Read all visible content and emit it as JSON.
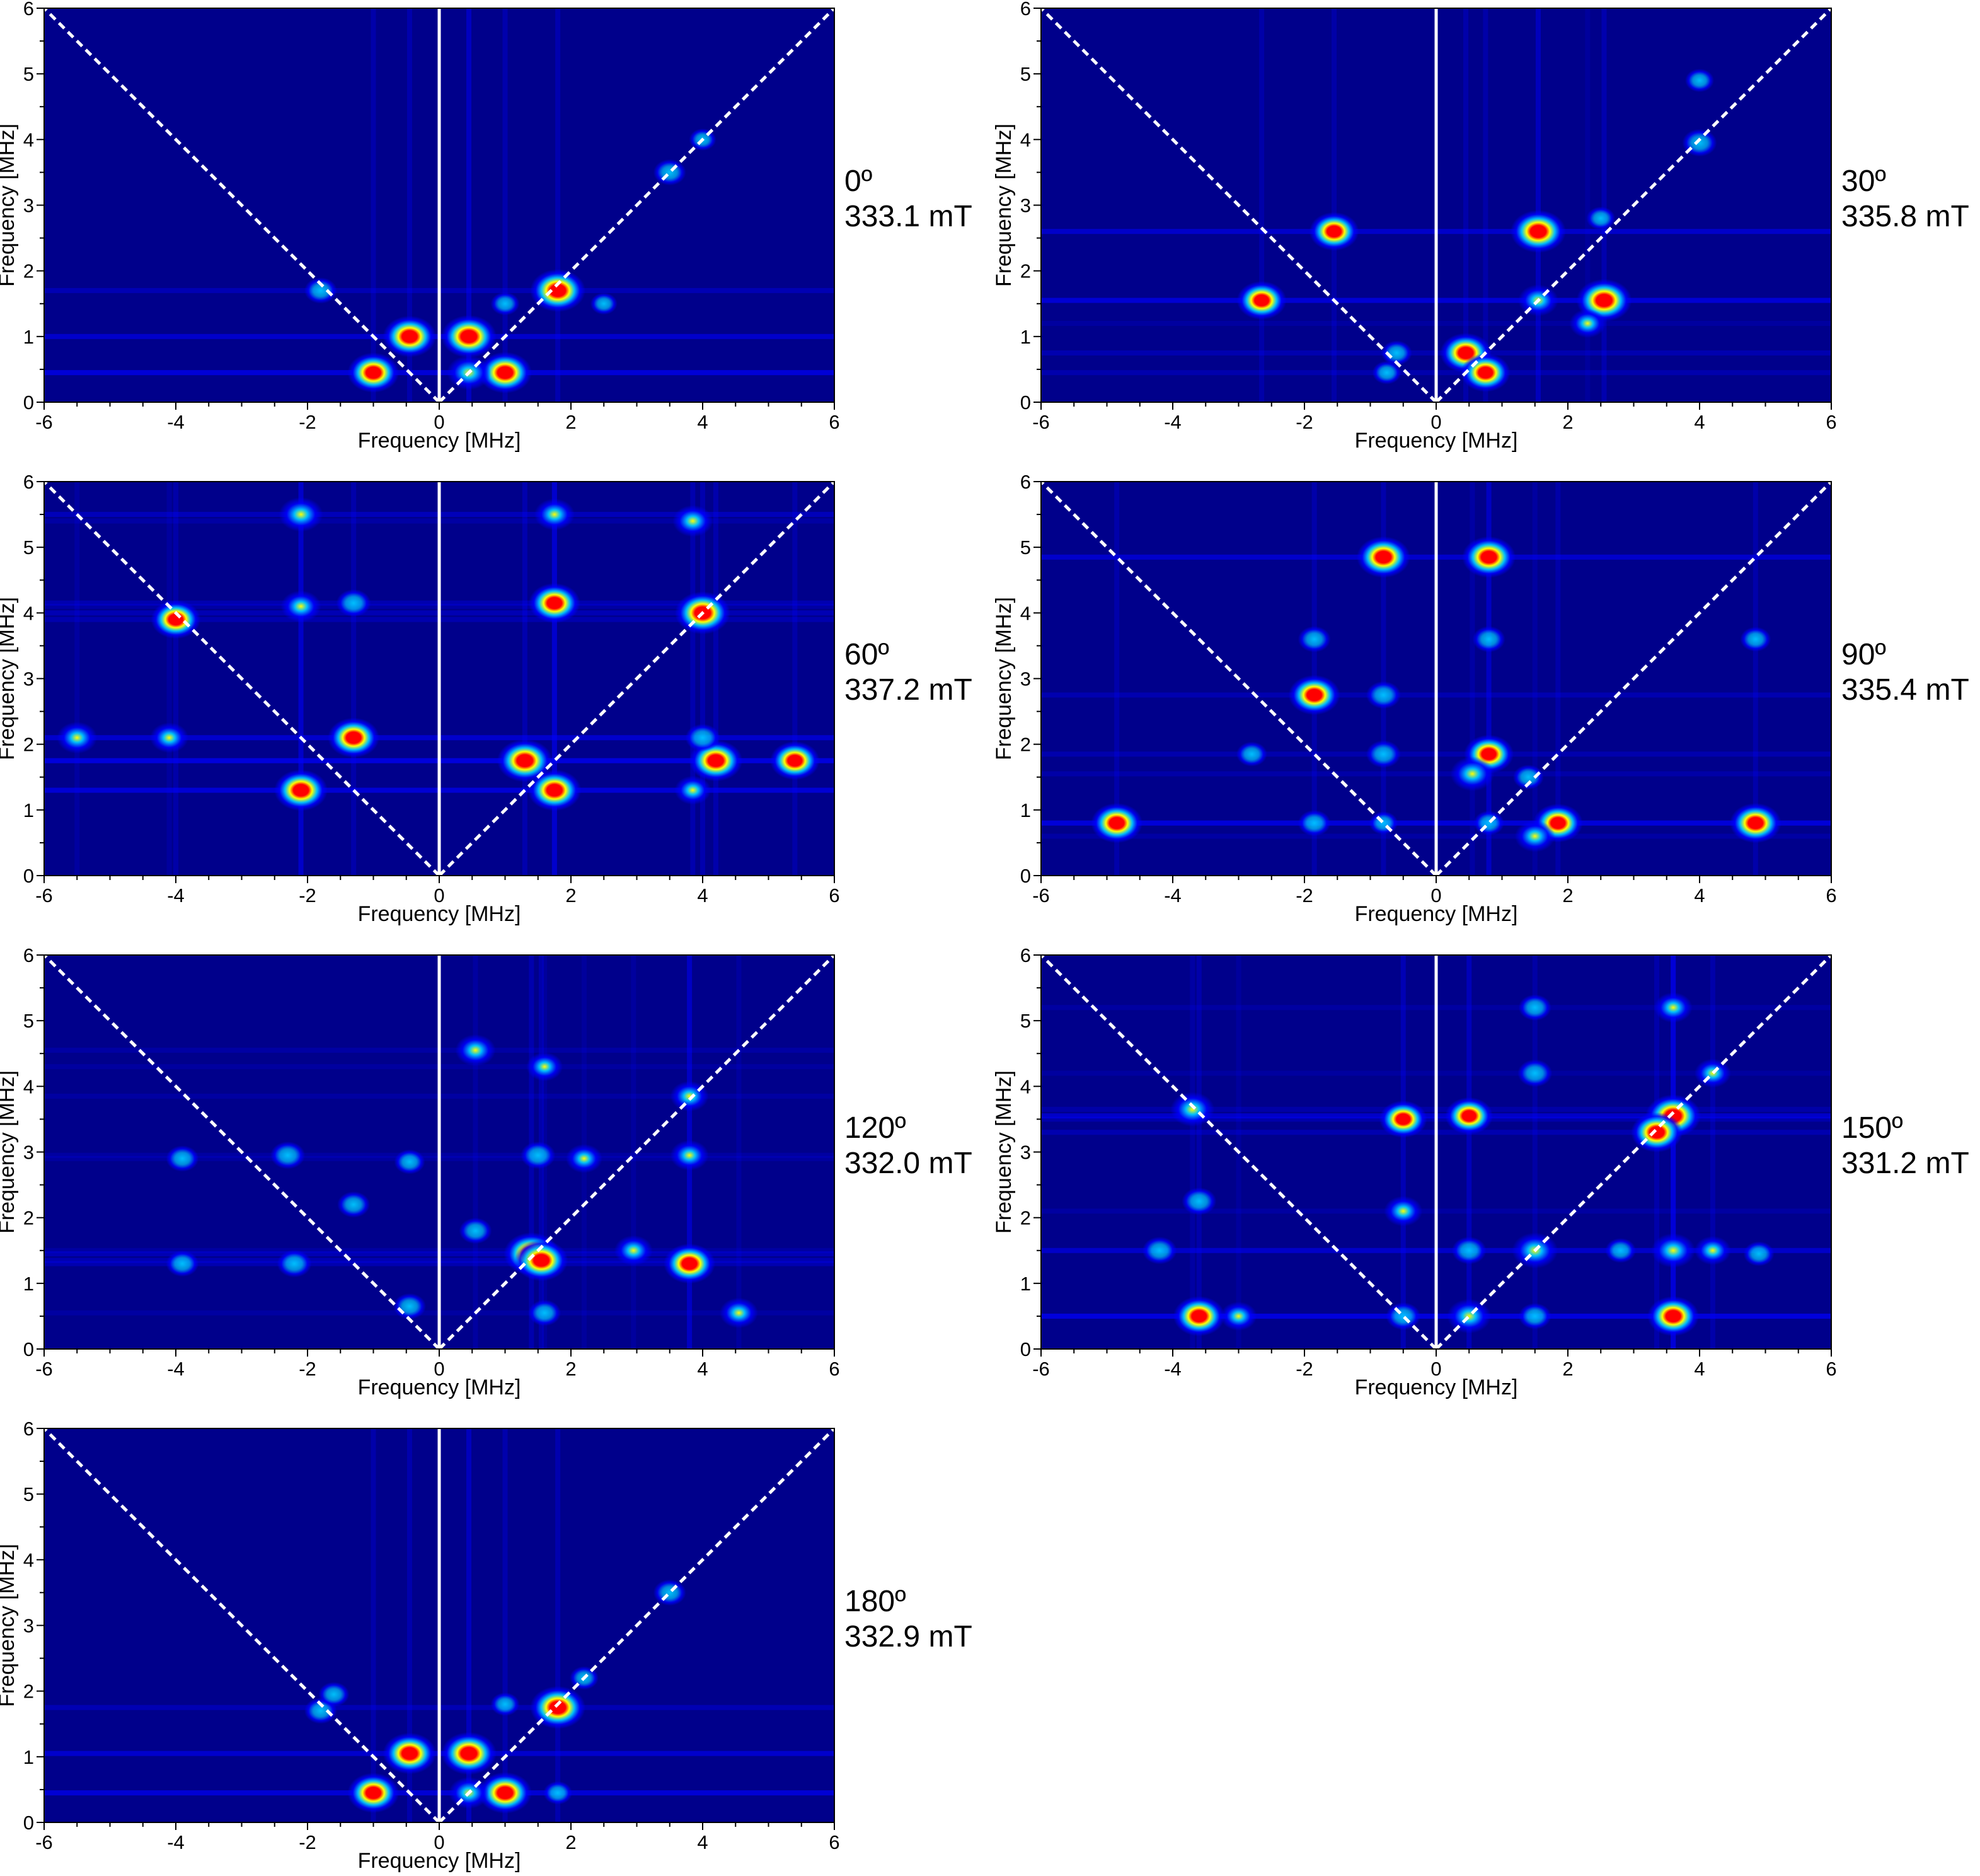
{
  "figure": {
    "panel_count": 7
  },
  "chart_data": [
    {
      "type": "heatmap",
      "panel_label": [
        "0º",
        "333.1 mT"
      ],
      "angle": "0º",
      "field": "333.1 mT",
      "xlabel": "Frequency [MHz]",
      "ylabel": "Frequency [MHz]",
      "xlim": [
        -6,
        6
      ],
      "ylim": [
        0,
        6
      ],
      "xticks": [
        -6,
        -4,
        -2,
        0,
        2,
        4,
        6
      ],
      "yticks": [
        0,
        1,
        2,
        3,
        4,
        5,
        6
      ],
      "reference_lines": [
        "x=0",
        "y=x",
        "y=-x"
      ],
      "colormap": [
        "#00008b",
        "#0000ff",
        "#00c8ff",
        "#ffff00",
        "#ff0000"
      ],
      "peaks": [
        {
          "x": 1.8,
          "y": 1.7,
          "intensity": 1.0
        },
        {
          "x": 0.45,
          "y": 1.0,
          "intensity": 1.0
        },
        {
          "x": -0.45,
          "y": 1.0,
          "intensity": 0.95
        },
        {
          "x": 1.0,
          "y": 0.45,
          "intensity": 0.95
        },
        {
          "x": -1.0,
          "y": 0.45,
          "intensity": 0.9
        },
        {
          "x": 0.45,
          "y": 0.45,
          "intensity": 0.7
        },
        {
          "x": -1.8,
          "y": 1.7,
          "intensity": 0.4
        },
        {
          "x": 3.5,
          "y": 3.5,
          "intensity": 0.4
        },
        {
          "x": 1.0,
          "y": 1.5,
          "intensity": 0.3
        },
        {
          "x": 2.5,
          "y": 1.5,
          "intensity": 0.25
        },
        {
          "x": 4.0,
          "y": 4.0,
          "intensity": 0.25
        }
      ]
    },
    {
      "type": "heatmap",
      "panel_label": [
        "30º",
        "335.8 mT"
      ],
      "angle": "30º",
      "field": "335.8 mT",
      "xlabel": "Frequency [MHz]",
      "ylabel": "Frequency [MHz]",
      "xlim": [
        -6,
        6
      ],
      "ylim": [
        0,
        6
      ],
      "xticks": [
        -6,
        -4,
        -2,
        0,
        2,
        4,
        6
      ],
      "yticks": [
        0,
        1,
        2,
        3,
        4,
        5,
        6
      ],
      "reference_lines": [
        "x=0",
        "y=x",
        "y=-x"
      ],
      "colormap": [
        "#00008b",
        "#0000ff",
        "#00c8ff",
        "#ffff00",
        "#ff0000"
      ],
      "peaks": [
        {
          "x": 1.55,
          "y": 2.6,
          "intensity": 1.0
        },
        {
          "x": 2.55,
          "y": 1.55,
          "intensity": 1.0
        },
        {
          "x": -2.65,
          "y": 1.55,
          "intensity": 0.85
        },
        {
          "x": -1.55,
          "y": 2.6,
          "intensity": 0.85
        },
        {
          "x": 0.45,
          "y": 0.75,
          "intensity": 0.9
        },
        {
          "x": 0.75,
          "y": 0.45,
          "intensity": 0.85
        },
        {
          "x": 1.55,
          "y": 1.55,
          "intensity": 0.6
        },
        {
          "x": 2.3,
          "y": 1.2,
          "intensity": 0.5
        },
        {
          "x": 4.0,
          "y": 3.95,
          "intensity": 0.45
        },
        {
          "x": 4.0,
          "y": 4.9,
          "intensity": 0.3
        },
        {
          "x": -0.6,
          "y": 0.75,
          "intensity": 0.35
        },
        {
          "x": -0.75,
          "y": 0.45,
          "intensity": 0.3
        },
        {
          "x": 2.5,
          "y": 2.8,
          "intensity": 0.3
        }
      ]
    },
    {
      "type": "heatmap",
      "panel_label": [
        "60º",
        "337.2 mT"
      ],
      "angle": "60º",
      "field": "337.2 mT",
      "xlabel": "Frequency [MHz]",
      "ylabel": "Frequency [MHz]",
      "xlim": [
        -6,
        6
      ],
      "ylim": [
        0,
        6
      ],
      "xticks": [
        -6,
        -4,
        -2,
        0,
        2,
        4,
        6
      ],
      "yticks": [
        0,
        1,
        2,
        3,
        4,
        5,
        6
      ],
      "reference_lines": [
        "x=0",
        "y=x",
        "y=-x"
      ],
      "colormap": [
        "#00008b",
        "#0000ff",
        "#00c8ff",
        "#ffff00",
        "#ff0000"
      ],
      "peaks": [
        {
          "x": 4.0,
          "y": 4.0,
          "intensity": 1.0
        },
        {
          "x": 1.3,
          "y": 1.75,
          "intensity": 1.0
        },
        {
          "x": 1.75,
          "y": 1.3,
          "intensity": 0.95
        },
        {
          "x": -2.1,
          "y": 1.3,
          "intensity": 0.95
        },
        {
          "x": 4.2,
          "y": 1.75,
          "intensity": 0.95
        },
        {
          "x": 5.4,
          "y": 1.75,
          "intensity": 0.85
        },
        {
          "x": -1.3,
          "y": 2.1,
          "intensity": 0.9
        },
        {
          "x": 1.75,
          "y": 4.15,
          "intensity": 0.9
        },
        {
          "x": -4.0,
          "y": 3.9,
          "intensity": 0.85
        },
        {
          "x": -2.1,
          "y": 5.5,
          "intensity": 0.7
        },
        {
          "x": 1.75,
          "y": 5.5,
          "intensity": 0.6
        },
        {
          "x": 3.85,
          "y": 5.4,
          "intensity": 0.6
        },
        {
          "x": -5.5,
          "y": 2.1,
          "intensity": 0.6
        },
        {
          "x": -2.1,
          "y": 4.1,
          "intensity": 0.6
        },
        {
          "x": -4.1,
          "y": 2.1,
          "intensity": 0.55
        },
        {
          "x": 3.85,
          "y": 1.3,
          "intensity": 0.5
        },
        {
          "x": 4.0,
          "y": 2.1,
          "intensity": 0.45
        },
        {
          "x": -1.3,
          "y": 4.15,
          "intensity": 0.45
        }
      ]
    },
    {
      "type": "heatmap",
      "panel_label": [
        "90º",
        "335.4 mT"
      ],
      "angle": "90º",
      "field": "335.4 mT",
      "xlabel": "Frequency [MHz]",
      "ylabel": "Frequency [MHz]",
      "xlim": [
        -6,
        6
      ],
      "ylim": [
        0,
        6
      ],
      "xticks": [
        -6,
        -4,
        -2,
        0,
        2,
        4,
        6
      ],
      "yticks": [
        0,
        1,
        2,
        3,
        4,
        5,
        6
      ],
      "reference_lines": [
        "x=0",
        "y=x",
        "y=-x"
      ],
      "colormap": [
        "#00008b",
        "#0000ff",
        "#00c8ff",
        "#ffff00",
        "#ff0000"
      ],
      "peaks": [
        {
          "x": -0.8,
          "y": 4.85,
          "intensity": 0.95
        },
        {
          "x": 0.8,
          "y": 4.85,
          "intensity": 0.95
        },
        {
          "x": -1.85,
          "y": 2.75,
          "intensity": 0.9
        },
        {
          "x": -4.85,
          "y": 0.8,
          "intensity": 0.9
        },
        {
          "x": 4.85,
          "y": 0.8,
          "intensity": 0.9
        },
        {
          "x": 0.8,
          "y": 1.85,
          "intensity": 0.85
        },
        {
          "x": 1.85,
          "y": 0.8,
          "intensity": 0.85
        },
        {
          "x": 0.55,
          "y": 1.55,
          "intensity": 0.7
        },
        {
          "x": 1.5,
          "y": 0.6,
          "intensity": 0.6
        },
        {
          "x": -0.8,
          "y": 2.75,
          "intensity": 0.45
        },
        {
          "x": -0.8,
          "y": 1.85,
          "intensity": 0.45
        },
        {
          "x": -1.85,
          "y": 3.6,
          "intensity": 0.4
        },
        {
          "x": 0.8,
          "y": 3.6,
          "intensity": 0.4
        },
        {
          "x": -1.85,
          "y": 0.8,
          "intensity": 0.4
        },
        {
          "x": 4.85,
          "y": 3.6,
          "intensity": 0.35
        },
        {
          "x": -2.8,
          "y": 1.85,
          "intensity": 0.35
        },
        {
          "x": 1.4,
          "y": 1.5,
          "intensity": 0.35
        },
        {
          "x": 0.8,
          "y": 0.8,
          "intensity": 0.35
        },
        {
          "x": -0.8,
          "y": 0.8,
          "intensity": 0.3
        }
      ]
    },
    {
      "type": "heatmap",
      "panel_label": [
        "120º",
        "332.0 mT"
      ],
      "angle": "120º",
      "field": "332.0 mT",
      "xlabel": "Frequency [MHz]",
      "ylabel": "Frequency [MHz]",
      "xlim": [
        -6,
        6
      ],
      "ylim": [
        0,
        6
      ],
      "xticks": [
        -6,
        -4,
        -2,
        0,
        2,
        4,
        6
      ],
      "yticks": [
        0,
        1,
        2,
        3,
        4,
        5,
        6
      ],
      "reference_lines": [
        "x=0",
        "y=x",
        "y=-x"
      ],
      "colormap": [
        "#00008b",
        "#0000ff",
        "#00c8ff",
        "#ffff00",
        "#ff0000"
      ],
      "peaks": [
        {
          "x": 1.4,
          "y": 1.45,
          "intensity": 1.0
        },
        {
          "x": 1.55,
          "y": 1.35,
          "intensity": 0.95
        },
        {
          "x": 3.8,
          "y": 1.3,
          "intensity": 0.9
        },
        {
          "x": 0.55,
          "y": 4.55,
          "intensity": 0.6
        },
        {
          "x": 1.6,
          "y": 4.3,
          "intensity": 0.5
        },
        {
          "x": 3.8,
          "y": 3.85,
          "intensity": 0.55
        },
        {
          "x": 3.8,
          "y": 2.95,
          "intensity": 0.55
        },
        {
          "x": 2.95,
          "y": 1.5,
          "intensity": 0.55
        },
        {
          "x": 4.55,
          "y": 0.55,
          "intensity": 0.55
        },
        {
          "x": 2.2,
          "y": 2.9,
          "intensity": 0.5
        },
        {
          "x": 1.5,
          "y": 2.95,
          "intensity": 0.45
        },
        {
          "x": -2.3,
          "y": 2.95,
          "intensity": 0.45
        },
        {
          "x": -2.2,
          "y": 1.3,
          "intensity": 0.45
        },
        {
          "x": -1.3,
          "y": 2.2,
          "intensity": 0.4
        },
        {
          "x": -3.9,
          "y": 2.9,
          "intensity": 0.4
        },
        {
          "x": -3.9,
          "y": 1.3,
          "intensity": 0.4
        },
        {
          "x": 0.55,
          "y": 1.8,
          "intensity": 0.4
        },
        {
          "x": -0.45,
          "y": 0.65,
          "intensity": 0.4
        },
        {
          "x": 1.6,
          "y": 0.55,
          "intensity": 0.4
        },
        {
          "x": -0.45,
          "y": 2.85,
          "intensity": 0.35
        }
      ]
    },
    {
      "type": "heatmap",
      "panel_label": [
        "150º",
        "331.2 mT"
      ],
      "angle": "150º",
      "field": "331.2 mT",
      "xlabel": "Frequency [MHz]",
      "ylabel": "Frequency [MHz]",
      "xlim": [
        -6,
        6
      ],
      "ylim": [
        0,
        6
      ],
      "xticks": [
        -6,
        -4,
        -2,
        0,
        2,
        4,
        6
      ],
      "yticks": [
        0,
        1,
        2,
        3,
        4,
        5,
        6
      ],
      "reference_lines": [
        "x=0",
        "y=x",
        "y=-x"
      ],
      "colormap": [
        "#00008b",
        "#0000ff",
        "#00c8ff",
        "#ffff00",
        "#ff0000"
      ],
      "peaks": [
        {
          "x": 3.6,
          "y": 3.55,
          "intensity": 1.0
        },
        {
          "x": 3.35,
          "y": 3.3,
          "intensity": 0.9
        },
        {
          "x": -3.6,
          "y": 0.5,
          "intensity": 0.9
        },
        {
          "x": 3.6,
          "y": 0.5,
          "intensity": 0.9
        },
        {
          "x": -0.5,
          "y": 3.5,
          "intensity": 0.8
        },
        {
          "x": 0.5,
          "y": 3.55,
          "intensity": 0.8
        },
        {
          "x": -3.7,
          "y": 3.65,
          "intensity": 0.7
        },
        {
          "x": 1.5,
          "y": 1.5,
          "intensity": 0.75
        },
        {
          "x": 3.6,
          "y": 1.5,
          "intensity": 0.7
        },
        {
          "x": 0.5,
          "y": 0.5,
          "intensity": 0.7
        },
        {
          "x": 3.6,
          "y": 5.2,
          "intensity": 0.55
        },
        {
          "x": 4.2,
          "y": 4.2,
          "intensity": 0.5
        },
        {
          "x": 4.2,
          "y": 1.5,
          "intensity": 0.5
        },
        {
          "x": -0.5,
          "y": 2.1,
          "intensity": 0.55
        },
        {
          "x": 1.5,
          "y": 4.2,
          "intensity": 0.45
        },
        {
          "x": 1.5,
          "y": 5.2,
          "intensity": 0.4
        },
        {
          "x": 0.5,
          "y": 1.5,
          "intensity": 0.45
        },
        {
          "x": -3.6,
          "y": 2.25,
          "intensity": 0.45
        },
        {
          "x": -4.2,
          "y": 1.5,
          "intensity": 0.45
        },
        {
          "x": -3.0,
          "y": 0.5,
          "intensity": 0.5
        },
        {
          "x": -0.5,
          "y": 0.5,
          "intensity": 0.45
        },
        {
          "x": 1.5,
          "y": 0.5,
          "intensity": 0.4
        },
        {
          "x": 2.8,
          "y": 1.5,
          "intensity": 0.35
        },
        {
          "x": 4.9,
          "y": 1.45,
          "intensity": 0.35
        }
      ]
    },
    {
      "type": "heatmap",
      "panel_label": [
        "180º",
        "332.9 mT"
      ],
      "angle": "180º",
      "field": "332.9 mT",
      "xlabel": "Frequency [MHz]",
      "ylabel": "Frequency [MHz]",
      "xlim": [
        -6,
        6
      ],
      "ylim": [
        0,
        6
      ],
      "xticks": [
        -6,
        -4,
        -2,
        0,
        2,
        4,
        6
      ],
      "yticks": [
        0,
        1,
        2,
        3,
        4,
        5,
        6
      ],
      "reference_lines": [
        "x=0",
        "y=x",
        "y=-x"
      ],
      "colormap": [
        "#00008b",
        "#0000ff",
        "#00c8ff",
        "#ffff00",
        "#ff0000"
      ],
      "peaks": [
        {
          "x": 1.8,
          "y": 1.75,
          "intensity": 1.0
        },
        {
          "x": 0.45,
          "y": 1.05,
          "intensity": 1.0
        },
        {
          "x": -0.45,
          "y": 1.05,
          "intensity": 0.95
        },
        {
          "x": 1.0,
          "y": 0.45,
          "intensity": 0.95
        },
        {
          "x": -1.0,
          "y": 0.45,
          "intensity": 0.9
        },
        {
          "x": 0.45,
          "y": 0.45,
          "intensity": 0.6
        },
        {
          "x": -1.8,
          "y": 1.7,
          "intensity": 0.4
        },
        {
          "x": -1.6,
          "y": 1.95,
          "intensity": 0.35
        },
        {
          "x": 3.5,
          "y": 3.5,
          "intensity": 0.4
        },
        {
          "x": 1.0,
          "y": 1.8,
          "intensity": 0.3
        },
        {
          "x": 2.2,
          "y": 2.2,
          "intensity": 0.3
        },
        {
          "x": 1.8,
          "y": 0.45,
          "intensity": 0.3
        }
      ]
    }
  ]
}
